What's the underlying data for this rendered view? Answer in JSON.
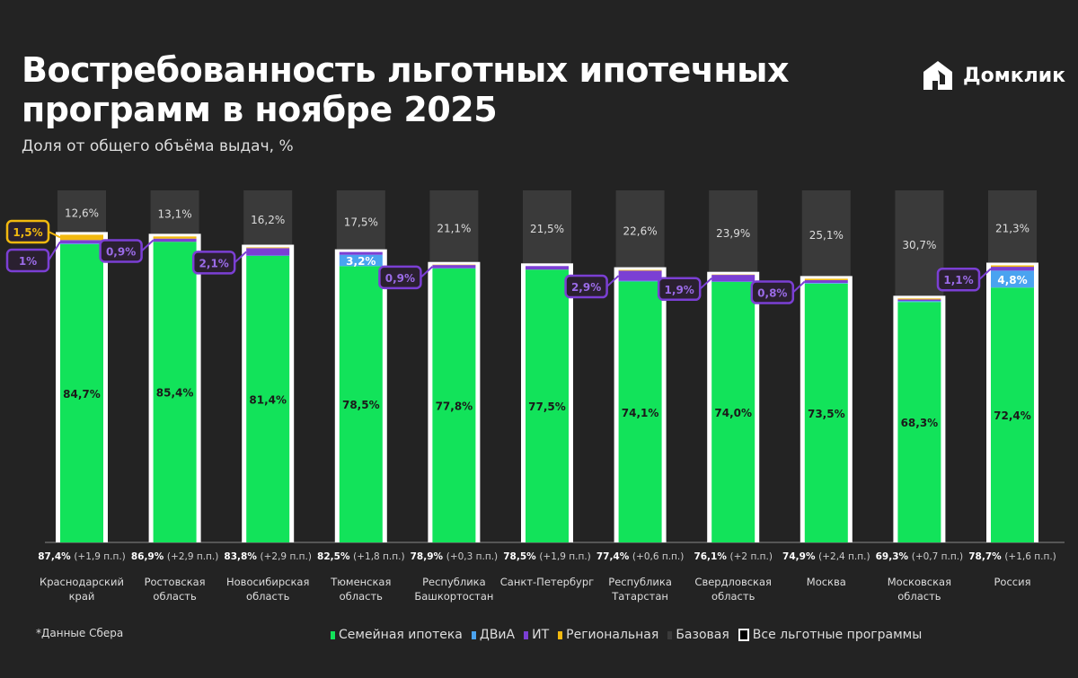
{
  "header": {
    "title_line1": "Востребованность льготных ипотечных",
    "title_line2": "программ в ноябре 2025",
    "subtitle": "Доля от общего объёма выдач, %",
    "logo": "Домклик"
  },
  "footer": {
    "source": "*Данные Сбера"
  },
  "colors": {
    "family": "#12e35a",
    "dvia": "#4aa3f0",
    "it": "#7b3fd4",
    "regional": "#f2b90f",
    "base": "#3a3a3a",
    "all": "#ffffff"
  },
  "chart_data": {
    "type": "bar",
    "stacked": true,
    "title": "Востребованность льготных ипотечных программ в ноябре 2025",
    "ylabel": "Доля от общего объёма выдач, %",
    "ylim": [
      0,
      100
    ],
    "legend": [
      {
        "key": "family",
        "label": "Семейная ипотека"
      },
      {
        "key": "dvia",
        "label": "ДВиА"
      },
      {
        "key": "it",
        "label": "ИТ"
      },
      {
        "key": "regional",
        "label": "Региональная"
      },
      {
        "key": "base",
        "label": "Базовая"
      },
      {
        "key": "all",
        "label": "Все льготные программы"
      }
    ],
    "categories": [
      {
        "name1": "Краснодарский",
        "name2": "край",
        "family": 84.7,
        "dvia": 0.2,
        "it": 1.0,
        "regional": 1.5,
        "base": 12.6,
        "total": "87,4%",
        "change": "(+1,9 п.п.)",
        "family_label": "84,7%",
        "base_label": "12,6%",
        "callouts": [
          {
            "text": "1,5%",
            "key": "regional"
          },
          {
            "text": "1%",
            "key": "it"
          }
        ]
      },
      {
        "name1": "Ростовская",
        "name2": "область",
        "family": 85.4,
        "dvia": 0,
        "it": 0.9,
        "regional": 0.6,
        "base": 13.1,
        "total": "86,9%",
        "change": "(+2,9 п.п.)",
        "family_label": "85,4%",
        "base_label": "13,1%",
        "callouts": [
          {
            "text": "0,9%",
            "key": "it"
          }
        ]
      },
      {
        "name1": "Новосибирская",
        "name2": "область",
        "family": 81.4,
        "dvia": 0.1,
        "it": 2.1,
        "regional": 0.2,
        "base": 16.2,
        "total": "83,8%",
        "change": "(+2,9 п.п.)",
        "family_label": "81,4%",
        "base_label": "16,2%",
        "callouts": [
          {
            "text": "2,1%",
            "key": "it"
          }
        ]
      },
      {
        "name1": "Тюменская",
        "name2": "область",
        "family": 78.5,
        "dvia": 3.2,
        "it": 0.8,
        "regional": 0,
        "base": 17.5,
        "total": "82,5%",
        "change": "(+1,8 п.п.)",
        "family_label": "78,5%",
        "base_label": "17,5%",
        "dvia_label": "3,2%",
        "callouts": []
      },
      {
        "name1": "Республика",
        "name2": "Башкортостан",
        "family": 77.8,
        "dvia": 0.1,
        "it": 0.9,
        "regional": 0.1,
        "base": 21.1,
        "total": "78,9%",
        "change": "(+0,3 п.п.)",
        "family_label": "77,8%",
        "base_label": "21,1%",
        "callouts": [
          {
            "text": "0,9%",
            "key": "it"
          }
        ]
      },
      {
        "name1": "Санкт-Петербург",
        "name2": "",
        "family": 77.5,
        "dvia": 0,
        "it": 1.0,
        "regional": 0,
        "base": 21.5,
        "total": "78,5%",
        "change": "(+1,9 п.п.)",
        "family_label": "77,5%",
        "base_label": "21,5%",
        "callouts": []
      },
      {
        "name1": "Республика",
        "name2": "Татарстан",
        "family": 74.1,
        "dvia": 0.2,
        "it": 2.9,
        "regional": 0.2,
        "base": 22.6,
        "total": "77,4%",
        "change": "(+0,6 п.п.)",
        "family_label": "74,1%",
        "base_label": "22,6%",
        "callouts": [
          {
            "text": "2,9%",
            "key": "it"
          }
        ]
      },
      {
        "name1": "Свердловская",
        "name2": "область",
        "family": 74.0,
        "dvia": 0.1,
        "it": 1.9,
        "regional": 0.1,
        "base": 23.9,
        "total": "76,1%",
        "change": "(+2 п.п.)",
        "family_label": "74,0%",
        "base_label": "23,9%",
        "callouts": [
          {
            "text": "1,9%",
            "key": "it"
          }
        ]
      },
      {
        "name1": "Москва",
        "name2": "",
        "family": 73.5,
        "dvia": 0.2,
        "it": 0.8,
        "regional": 0.4,
        "base": 25.1,
        "total": "74,9%",
        "change": "(+2,4 п.п.)",
        "family_label": "73,5%",
        "base_label": "25,1%",
        "callouts": [
          {
            "text": "0,8%",
            "key": "it"
          }
        ]
      },
      {
        "name1": "Московская",
        "name2": "область",
        "family": 68.3,
        "dvia": 0.3,
        "it": 0.4,
        "regional": 0.3,
        "base": 30.7,
        "total": "69,3%",
        "change": "(+0,7 п.п.)",
        "family_label": "68,3%",
        "base_label": "30,7%",
        "callouts": []
      },
      {
        "name1": "Россия",
        "name2": "",
        "family": 72.4,
        "dvia": 4.8,
        "it": 1.1,
        "regional": 0.4,
        "base": 21.3,
        "total": "78,7%",
        "change": "(+1,6 п.п.)",
        "family_label": "72,4%",
        "base_label": "21,3%",
        "dvia_label": "4,8%",
        "callouts": [
          {
            "text": "1,1%",
            "key": "it"
          }
        ]
      }
    ]
  }
}
